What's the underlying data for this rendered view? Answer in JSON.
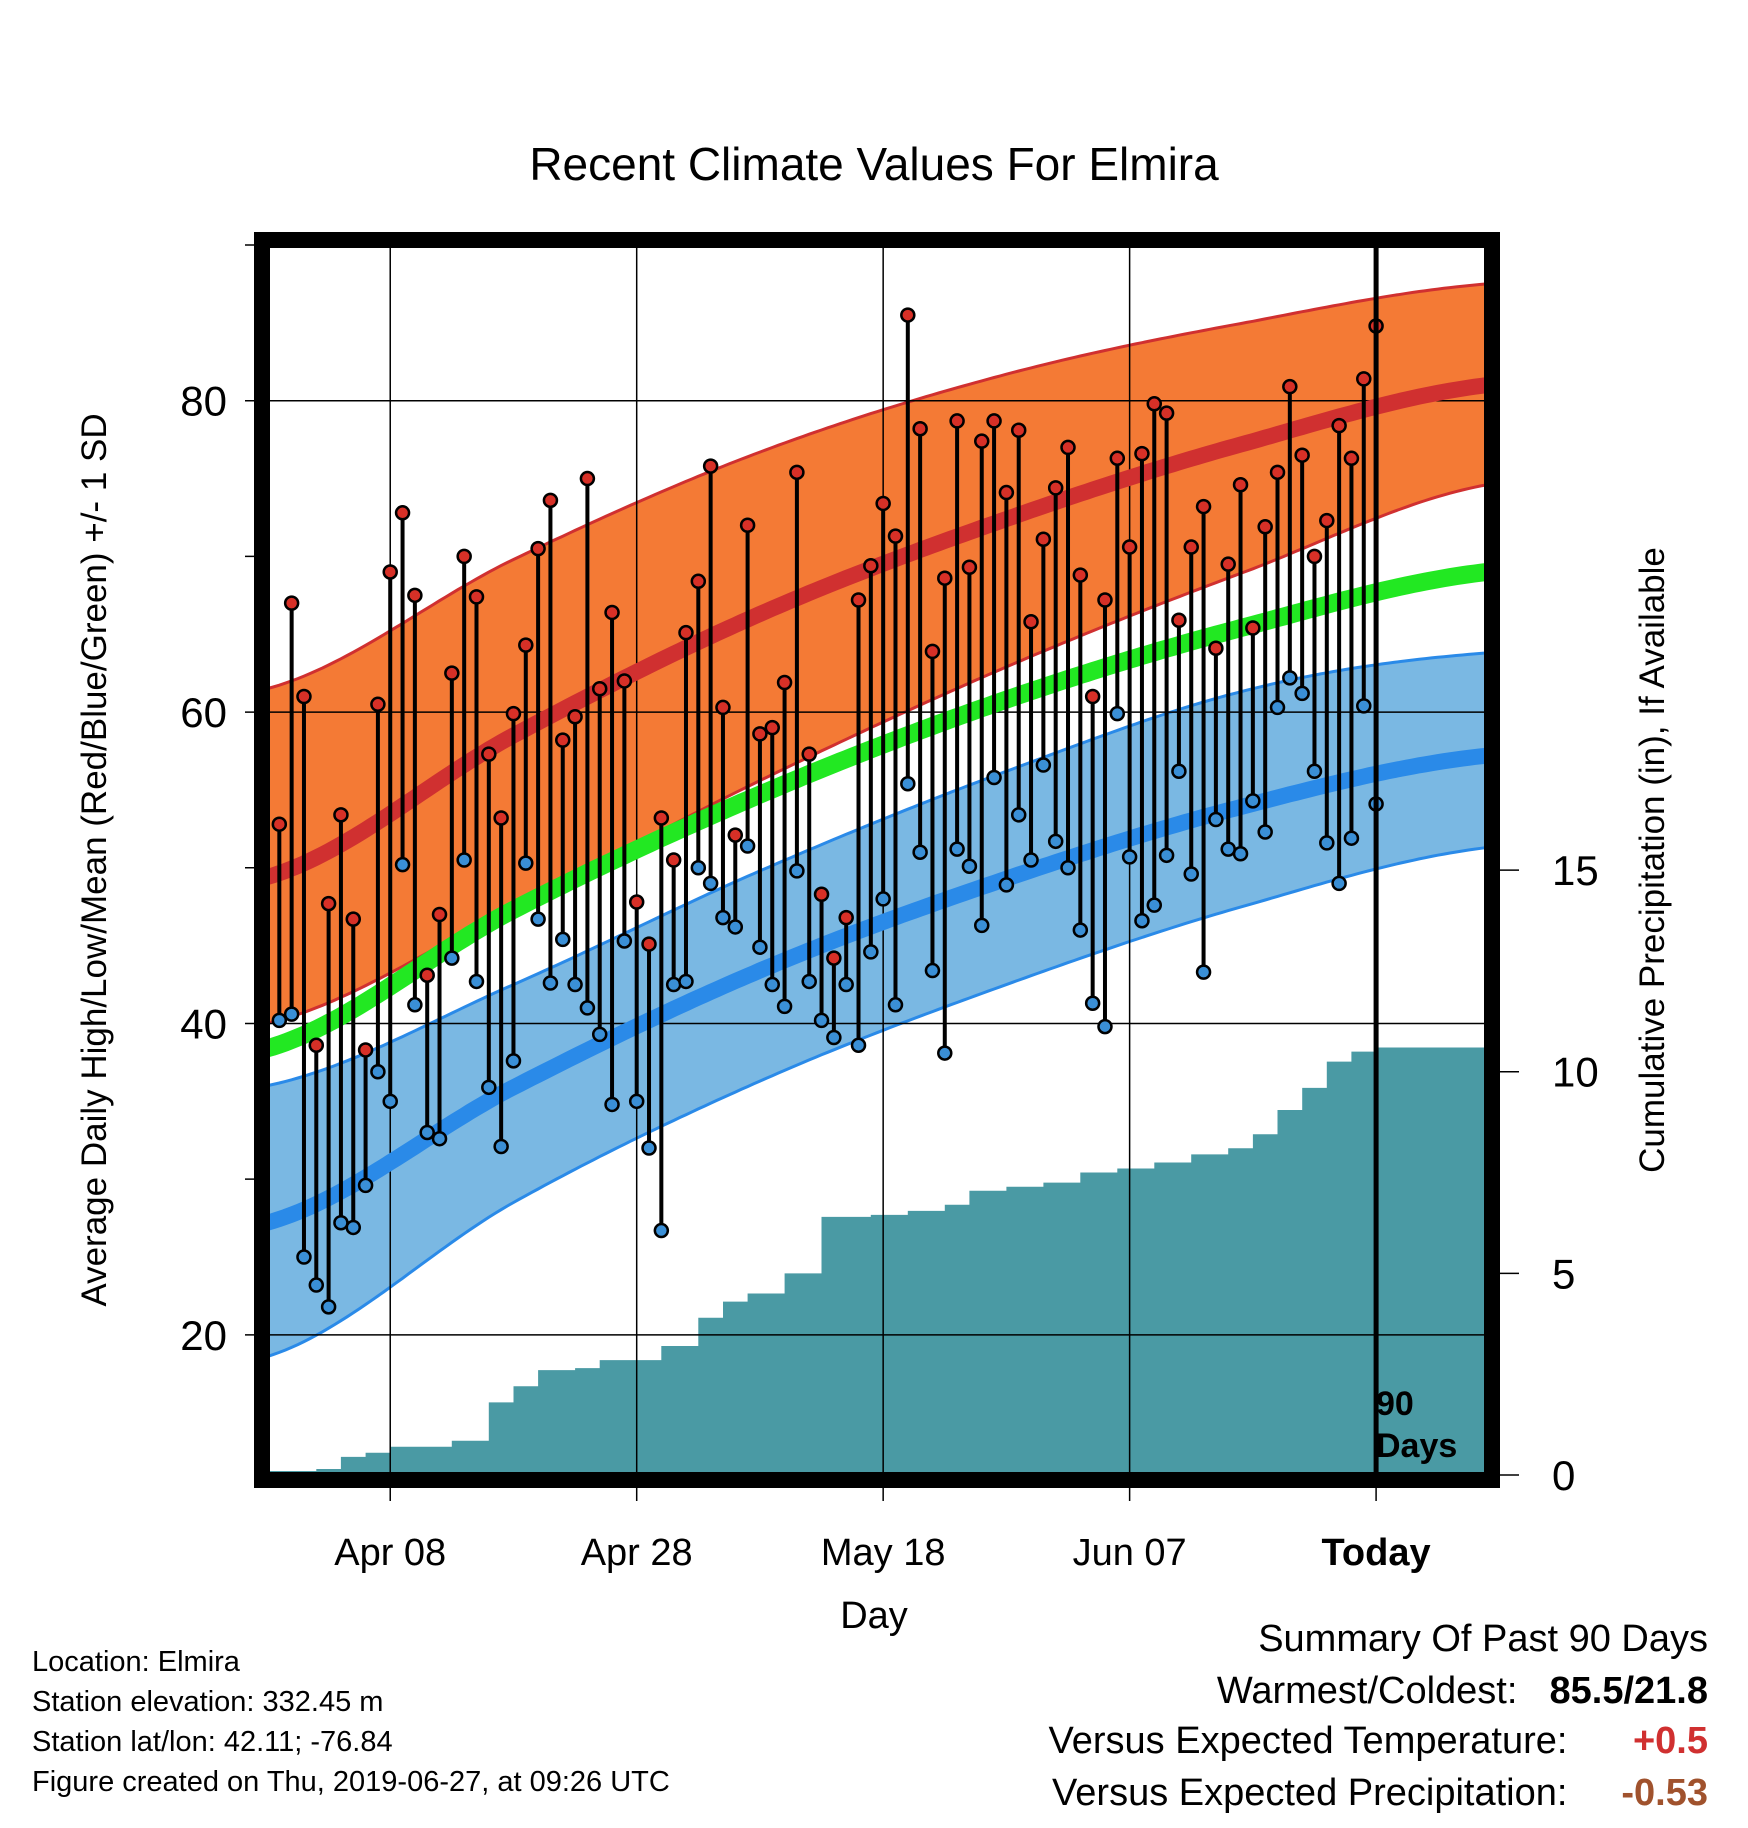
{
  "chart_data": {
    "type": "line",
    "title": "Recent Climate Values For Elmira",
    "xlabel": "Day",
    "ylabel_left": "Average Daily High/Low/Mean (Red/Blue/Green) +/- 1 SD",
    "ylabel_right": "Cumulative Precipitation (in), If Available",
    "x_unit": "days relative to today",
    "xlim": [
      -90,
      9
    ],
    "ylim_left": [
      11,
      90
    ],
    "ylim_right": [
      0,
      30.5
    ],
    "x_ticks": [
      {
        "x": -80,
        "label": "Apr 08"
      },
      {
        "x": -60,
        "label": "Apr 28"
      },
      {
        "x": -40,
        "label": "May 18"
      },
      {
        "x": -20,
        "label": "Jun 07"
      },
      {
        "x": 0,
        "label": "Today"
      }
    ],
    "y_ticks_left": [
      20,
      40,
      60,
      80
    ],
    "y_ticks_right": [
      0,
      5,
      10,
      15
    ],
    "grid": true,
    "today_marker": {
      "x": 0,
      "label_line1": "90",
      "label_line2": "Days"
    },
    "normal_bands": {
      "x": [
        -90,
        -70,
        -50,
        -30,
        -10,
        9
      ],
      "high_mean": [
        49.4,
        58.5,
        66.3,
        72.4,
        77.4,
        81.0
      ],
      "high_upper": [
        61.5,
        69.8,
        76.7,
        81.7,
        85.1,
        87.5
      ],
      "high_lower": [
        40.0,
        47.5,
        55.6,
        62.9,
        69.2,
        74.6
      ],
      "mean": [
        38.4,
        47.3,
        54.7,
        60.8,
        65.6,
        69.0
      ],
      "low_mean": [
        27.2,
        35.9,
        43.4,
        49.3,
        54.1,
        57.2
      ],
      "low_upper": [
        36.0,
        42.5,
        49.8,
        56.2,
        61.5,
        63.8
      ],
      "low_lower": [
        18.6,
        28.5,
        36.3,
        42.5,
        47.7,
        51.3
      ]
    },
    "series": [
      {
        "name": "High",
        "color": "#d73027",
        "values": [
          52.8,
          67.0,
          61.0,
          38.6,
          47.7,
          53.4,
          46.7,
          38.3,
          60.5,
          69.0,
          72.8,
          67.5,
          43.1,
          47.0,
          62.5,
          70.0,
          67.4,
          57.3,
          53.2,
          59.9,
          64.3,
          70.5,
          73.6,
          58.2,
          59.7,
          75.0,
          61.5,
          66.4,
          62.0,
          47.8,
          45.1,
          53.2,
          50.5,
          65.1,
          68.4,
          75.8,
          60.3,
          52.1,
          72.0,
          58.6,
          59.0,
          61.9,
          75.4,
          57.3,
          48.3,
          44.2,
          46.8,
          67.2,
          69.4,
          73.4,
          71.3,
          85.5,
          78.2,
          63.9,
          68.6,
          78.7,
          69.3,
          77.4,
          78.7,
          74.1,
          78.1,
          65.8,
          71.1,
          74.4,
          77.0,
          68.8,
          61.0,
          67.2,
          76.3,
          70.6,
          76.6,
          79.8,
          79.2,
          65.9,
          70.6,
          73.2,
          64.1,
          69.5,
          74.6,
          65.4,
          71.9,
          75.4,
          80.9,
          76.5,
          70.0,
          72.3,
          78.4,
          76.3,
          81.4,
          84.8
        ]
      },
      {
        "name": "Low",
        "color": "#3a8fd6",
        "values": [
          40.2,
          40.6,
          25.0,
          23.2,
          21.8,
          27.2,
          26.9,
          29.6,
          36.9,
          35.0,
          50.2,
          41.2,
          33.0,
          32.6,
          44.2,
          50.5,
          42.7,
          35.9,
          32.1,
          37.6,
          50.3,
          46.7,
          42.6,
          45.4,
          42.5,
          41.0,
          39.3,
          34.8,
          45.3,
          35.0,
          32.0,
          26.7,
          42.5,
          42.7,
          50.0,
          49.0,
          46.8,
          46.2,
          51.4,
          44.9,
          42.5,
          41.1,
          49.8,
          42.7,
          40.2,
          39.1,
          42.5,
          38.6,
          44.6,
          48.0,
          41.2,
          55.4,
          51.0,
          43.4,
          38.1,
          51.2,
          50.1,
          46.3,
          55.8,
          48.9,
          53.4,
          50.5,
          56.6,
          51.7,
          50.0,
          46.0,
          41.3,
          39.8,
          59.9,
          50.7,
          46.6,
          47.6,
          50.8,
          56.2,
          49.6,
          43.3,
          53.1,
          51.2,
          50.9,
          54.3,
          52.3,
          60.3,
          62.2,
          61.2,
          56.2,
          51.6,
          49.0,
          51.9,
          60.4,
          54.1
        ]
      }
    ],
    "precipitation": {
      "name": "Cumulative Precipitation",
      "color": "#4a9aa4",
      "x": [
        -90,
        -86,
        -84,
        -82,
        -80,
        -75,
        -72,
        -70,
        -68,
        -65,
        -63,
        -58,
        -55,
        -53,
        -51,
        -48,
        -45,
        -41,
        -38,
        -35,
        -33,
        -30,
        -27,
        -24,
        -21,
        -18,
        -15,
        -12,
        -10,
        -8,
        -6,
        -4,
        -2,
        0,
        9
      ],
      "values": [
        0.1,
        0.15,
        0.45,
        0.55,
        0.7,
        0.85,
        1.8,
        2.2,
        2.6,
        2.65,
        2.85,
        3.2,
        3.9,
        4.3,
        4.5,
        5.0,
        6.4,
        6.45,
        6.55,
        6.7,
        7.05,
        7.15,
        7.25,
        7.5,
        7.6,
        7.75,
        7.95,
        8.1,
        8.45,
        9.05,
        9.6,
        10.25,
        10.5,
        10.6,
        10.6
      ]
    }
  },
  "info": {
    "location": "Location: Elmira",
    "elevation": "Station elevation: 332.45 m",
    "latlon": "Station lat/lon: 42.11; -76.84",
    "created": "Figure created on Thu, 2019-06-27, at 09:26 UTC"
  },
  "summary": {
    "title": "Summary Of Past 90 Days",
    "warm_cold_label": "Warmest/Coldest:",
    "warm_cold_value": "85.5/21.8",
    "temp_label": "Versus Expected Temperature:",
    "temp_value": "+0.5",
    "temp_color": "#d03030",
    "precip_label": "Versus Expected Precipitation:",
    "precip_value": "-0.53",
    "precip_color": "#a0522d"
  },
  "colors": {
    "high_band": "#f47a35",
    "high_line": "#d03030",
    "mean_line": "#22e822",
    "low_band": "#7ab8e3",
    "low_line": "#2a8ae8"
  }
}
